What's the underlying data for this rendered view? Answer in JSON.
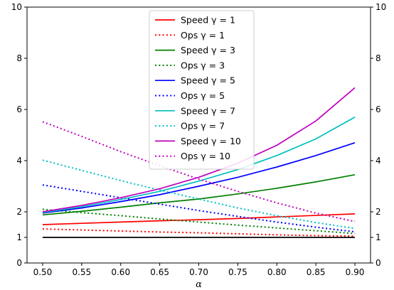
{
  "chart_data": {
    "type": "line",
    "xlabel": "α",
    "ylabel": "",
    "xlim": [
      0.48,
      0.92
    ],
    "ylim": [
      0,
      10
    ],
    "xticks": [
      "0.50",
      "0.55",
      "0.60",
      "0.65",
      "0.70",
      "0.75",
      "0.80",
      "0.85",
      "0.90"
    ],
    "xtick_values": [
      0.5,
      0.55,
      0.6,
      0.65,
      0.7,
      0.75,
      0.8,
      0.85,
      0.9
    ],
    "yticks": [
      "0",
      "1",
      "2",
      "4",
      "6",
      "8",
      "10"
    ],
    "ytick_values": [
      0,
      1,
      2,
      4,
      6,
      8,
      10
    ],
    "ticks_both_sides": true,
    "grid": false,
    "legend_position": "top-center",
    "x": [
      0.5,
      0.55,
      0.6,
      0.65,
      0.7,
      0.75,
      0.8,
      0.85,
      0.9
    ],
    "series": [
      {
        "name": "Speed γ = 1",
        "color": "#ff0000",
        "style": "solid",
        "values": [
          1.5,
          1.55,
          1.6,
          1.65,
          1.69,
          1.74,
          1.8,
          1.86,
          1.92
        ]
      },
      {
        "name": "Ops γ = 1",
        "color": "#ff0000",
        "style": "dotted",
        "values": [
          1.33,
          1.29,
          1.25,
          1.21,
          1.18,
          1.14,
          1.1,
          1.07,
          1.05
        ]
      },
      {
        "name": "Speed γ = 3",
        "color": "#008000",
        "style": "solid",
        "values": [
          1.88,
          2.02,
          2.18,
          2.35,
          2.5,
          2.7,
          2.92,
          3.17,
          3.45
        ]
      },
      {
        "name": "Ops γ = 3",
        "color": "#008000",
        "style": "dotted",
        "values": [
          2.1,
          1.97,
          1.85,
          1.72,
          1.6,
          1.48,
          1.37,
          1.26,
          1.15
        ]
      },
      {
        "name": "Speed γ = 5",
        "color": "#0000ff",
        "style": "solid",
        "values": [
          1.95,
          2.15,
          2.4,
          2.67,
          3.0,
          3.35,
          3.75,
          4.2,
          4.7
        ]
      },
      {
        "name": "Ops γ = 5",
        "color": "#0000ff",
        "style": "dotted",
        "values": [
          3.05,
          2.8,
          2.55,
          2.3,
          2.05,
          1.82,
          1.6,
          1.4,
          1.22
        ]
      },
      {
        "name": "Speed γ = 7",
        "color": "#00bfbf",
        "style": "solid",
        "values": [
          1.97,
          2.2,
          2.48,
          2.8,
          3.2,
          3.65,
          4.2,
          4.85,
          5.7
        ]
      },
      {
        "name": "Ops γ = 7",
        "color": "#00bfbf",
        "style": "dotted",
        "values": [
          4.02,
          3.62,
          3.22,
          2.85,
          2.5,
          2.15,
          1.85,
          1.58,
          1.35
        ]
      },
      {
        "name": "Speed γ = 10",
        "color": "#bf00bf",
        "style": "solid",
        "values": [
          2.0,
          2.25,
          2.55,
          2.9,
          3.35,
          3.9,
          4.6,
          5.55,
          6.85
        ]
      },
      {
        "name": "Ops γ = 10",
        "color": "#bf00bf",
        "style": "dotted",
        "values": [
          5.52,
          4.95,
          4.35,
          3.8,
          3.28,
          2.8,
          2.35,
          1.95,
          1.62
        ]
      },
      {
        "name": "",
        "color": "#000000",
        "style": "solid",
        "in_legend": false,
        "values": [
          1,
          1,
          1,
          1,
          1,
          1,
          1,
          1,
          1
        ]
      }
    ]
  }
}
